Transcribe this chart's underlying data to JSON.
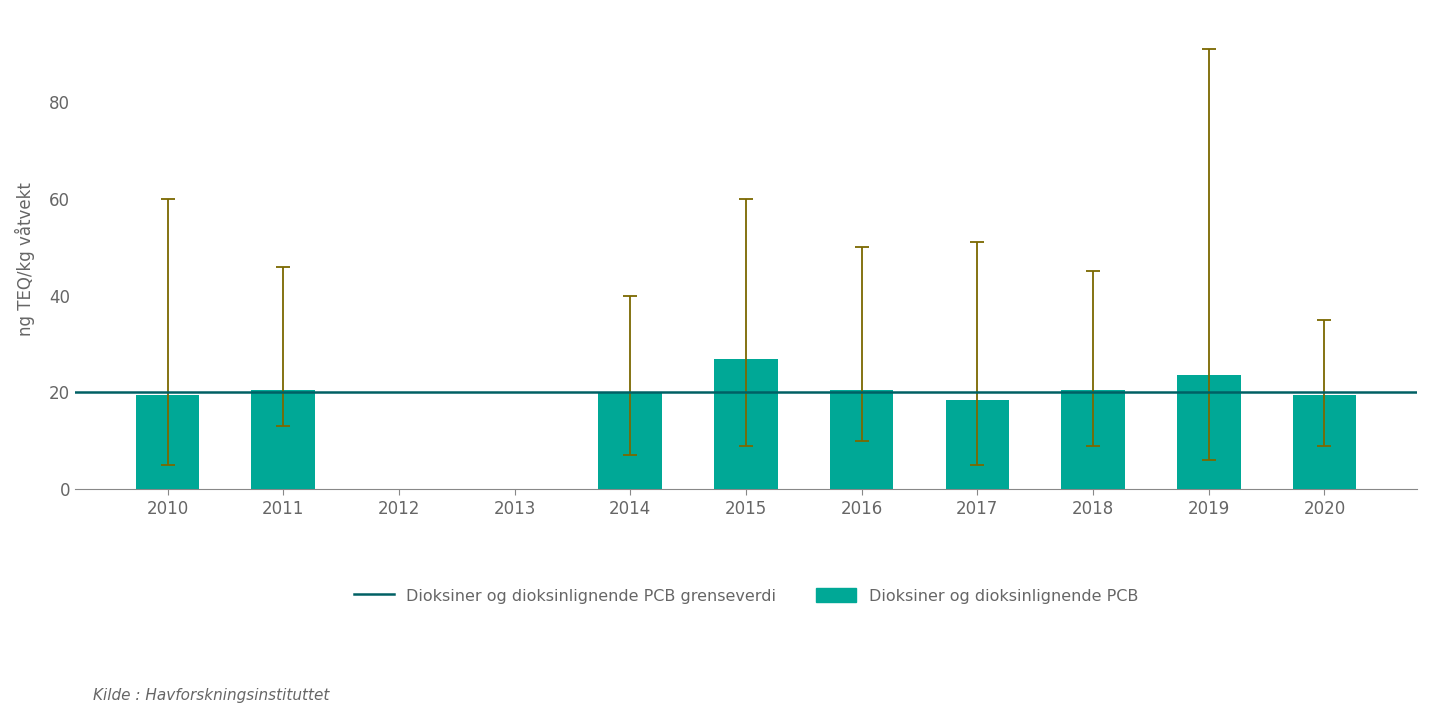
{
  "years": [
    2010,
    2011,
    2012,
    2013,
    2014,
    2015,
    2016,
    2017,
    2018,
    2019,
    2020
  ],
  "bar_values": [
    19.5,
    20.5,
    null,
    null,
    20.0,
    27.0,
    20.5,
    18.5,
    20.5,
    23.5,
    19.5
  ],
  "error_upper": [
    60,
    46,
    null,
    null,
    40,
    60,
    50,
    51,
    45,
    91,
    35
  ],
  "error_lower": [
    5,
    13,
    null,
    null,
    7,
    9,
    10,
    5,
    9,
    6,
    9
  ],
  "grenseverdi": 20,
  "bar_color": "#00A896",
  "error_color": "#7B6800",
  "grenseverdi_color": "#006064",
  "ylabel": "ng TEQ/kg våtvekt",
  "ylim": [
    0,
    95
  ],
  "yticks": [
    0,
    20,
    40,
    60,
    80
  ],
  "background_color": "#ffffff",
  "legend_grenseverdi": "Dioksiner og dioksinlignende PCB grenseverdi",
  "legend_bar": "Dioksiner og dioksinlignende PCB",
  "source_text": "Kilde : Havforskningsinstituttet",
  "bar_width": 0.55,
  "tick_color": "#888888",
  "label_color": "#666666"
}
